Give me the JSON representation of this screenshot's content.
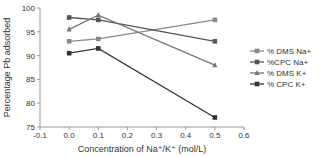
{
  "chart_data": {
    "type": "line",
    "xlabel": "Concentration of Na⁺/K⁺ (mol/L)",
    "ylabel": "Percentage Pb adsorbed",
    "x": [
      0.0,
      0.1,
      0.5
    ],
    "series": [
      {
        "name": "% DMS Na+",
        "color": "#888888",
        "marker": "square",
        "line_style": "solid",
        "values": [
          93.0,
          93.5,
          97.5
        ]
      },
      {
        "name": "%CPC Na+",
        "color": "#555555",
        "marker": "square",
        "line_style": "solid",
        "values": [
          98.0,
          97.5,
          93.0
        ]
      },
      {
        "name": "% DMS K+",
        "color": "#777777",
        "marker": "triangle",
        "line_style": "solid",
        "values": [
          95.5,
          98.5,
          88.0
        ]
      },
      {
        "name": "% CPC K+",
        "color": "#333333",
        "marker": "square",
        "line_style": "solid",
        "values": [
          90.5,
          91.5,
          77.0
        ]
      }
    ],
    "xlim": [
      -0.1,
      0.6
    ],
    "ylim": [
      75,
      100
    ],
    "xticks": [
      -0.1,
      {
        "value": 0,
        "label": "0.0"
      },
      0.1,
      0.2,
      0.3,
      0.4,
      0.5,
      0.6
    ],
    "yticks": [
      75,
      80,
      85,
      90,
      95,
      100
    ],
    "grid": false,
    "legend": "center right"
  }
}
